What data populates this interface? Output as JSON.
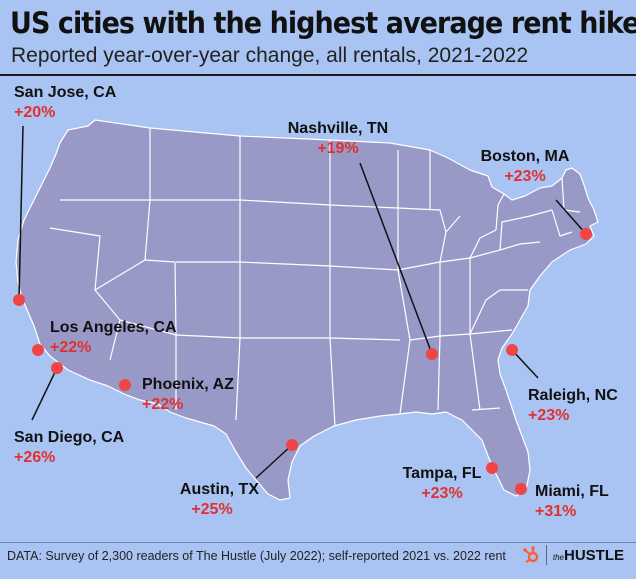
{
  "header": {
    "title": "US cities with the highest average rent hikes",
    "subtitle": "Reported year-over-year change, all rentals, 2021-2022"
  },
  "cities": [
    {
      "name": "San Jose, CA",
      "change": "+20%"
    },
    {
      "name": "Los Angeles, CA",
      "change": "+22%"
    },
    {
      "name": "San Diego, CA",
      "change": "+26%"
    },
    {
      "name": "Phoenix, AZ",
      "change": "+22%"
    },
    {
      "name": "Austin, TX",
      "change": "+25%"
    },
    {
      "name": "Nashville, TN",
      "change": "+19%"
    },
    {
      "name": "Boston, MA",
      "change": "+23%"
    },
    {
      "name": "Raleigh, NC",
      "change": "+23%"
    },
    {
      "name": "Tampa, FL",
      "change": "+23%"
    },
    {
      "name": "Miami, FL",
      "change": "+31%"
    }
  ],
  "footer": {
    "source": "DATA: Survey of 2,300 readers of The Hustle (July 2022); self-reported 2021 vs. 2022 rent",
    "brand_prefix": "the",
    "brand_name": "HUSTLE"
  },
  "colors": {
    "background": "#a9c4f2",
    "land": "#9999c8",
    "borders": "#ffffff",
    "marker": "#f04545",
    "percent_text": "#e0312f"
  },
  "icons": {
    "brand_logo": "hubspot-sprocket-icon",
    "city_marker": "red-dot-marker"
  }
}
